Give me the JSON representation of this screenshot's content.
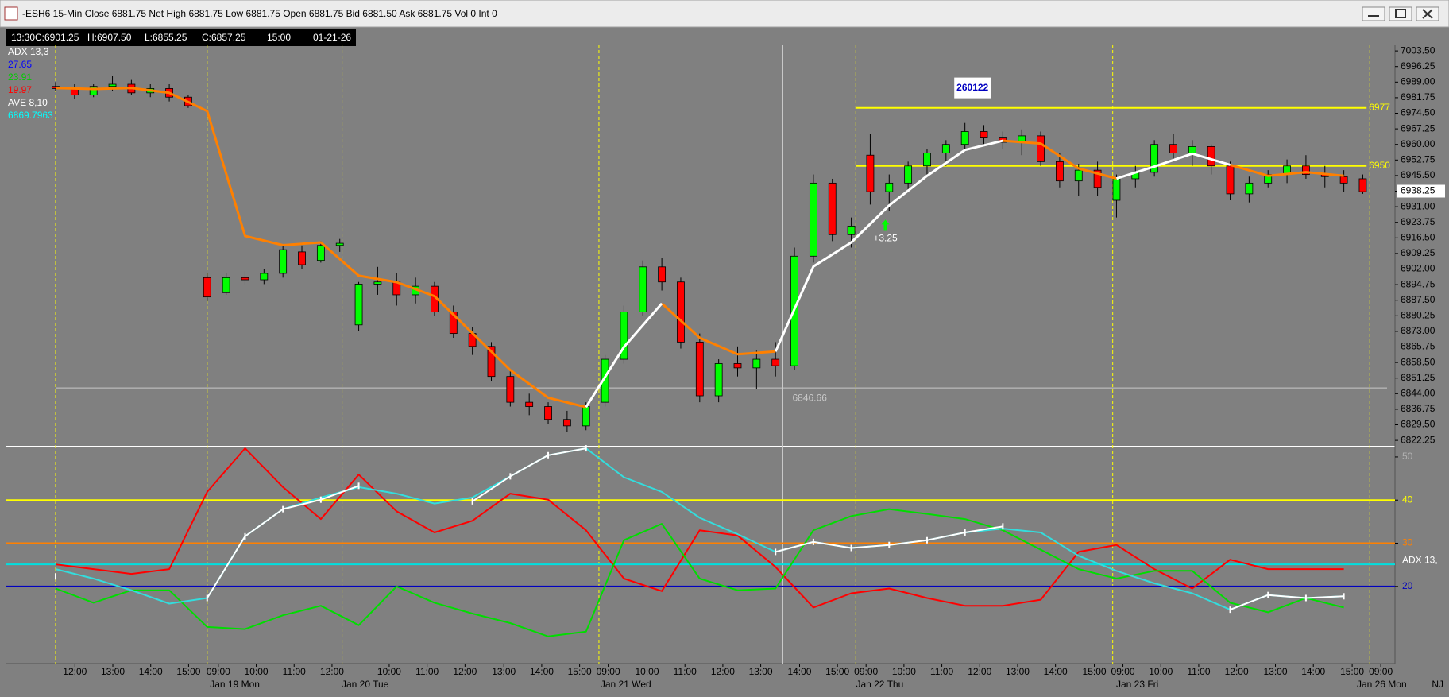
{
  "window_title": "-ESH6 15-Min Close 6881.75 Net  High 6881.75 Low 6881.75 Open 6881.75 Bid 6881.50 Ask 6881.75 Vol 0 Int 0",
  "info_box": [
    "13:30",
    "C:6901.25",
    "H:6907.50",
    "L:6855.25",
    "C:6857.25",
    "15:00",
    "01-21-26"
  ],
  "corner_label": "NJ",
  "chart_data": [
    {
      "type": "candlestick",
      "xlim": [
        -2.6,
        70.7
      ],
      "ylim": [
        6819.7,
        7006.5
      ],
      "yticks": [
        {
          "value": 7003.5,
          "label": "7003.50"
        },
        6996.25,
        {
          "value": 6989,
          "label": "6989.00"
        },
        6981.75,
        {
          "value": 6974.5,
          "label": "6974.50"
        },
        6967.25,
        {
          "value": 6960,
          "label": "6960.00"
        },
        6952.75,
        {
          "value": 6945.5,
          "label": "6945.50"
        },
        6938.25,
        {
          "value": 6931,
          "label": "6931.00"
        },
        6923.75,
        {
          "value": 6916.5,
          "label": "6916.50"
        },
        6909.25,
        {
          "value": 6902,
          "label": "6902.00"
        },
        6894.75,
        {
          "value": 6887.5,
          "label": "6887.50"
        },
        6880.25,
        {
          "value": 6873,
          "label": "6873.00"
        },
        6865.75,
        {
          "value": 6858.5,
          "label": "6858.50"
        },
        6851.25,
        {
          "value": 6844,
          "label": "6844.00"
        },
        6836.75,
        {
          "value": 6829.5,
          "label": "6829.50"
        },
        6822.25
      ],
      "highlight_ytick": 6938.25,
      "up_color": "#00ff00",
      "down_color": "#ff0000",
      "x": [
        0,
        1,
        2,
        3,
        4,
        5,
        6,
        7,
        8,
        9,
        10,
        11,
        12,
        13,
        14,
        15,
        16,
        17,
        18,
        19,
        20,
        21,
        22,
        23,
        24,
        25,
        26,
        27,
        28,
        29,
        30,
        31,
        32,
        33,
        34,
        35,
        36,
        37,
        38,
        39,
        40,
        41,
        42,
        43,
        44,
        45,
        46,
        47,
        48,
        49,
        50,
        51,
        52,
        53,
        54,
        55,
        56,
        57,
        58,
        59,
        60,
        61,
        62,
        63,
        64,
        65,
        66,
        67,
        68,
        69
      ],
      "open": [
        6987,
        6986,
        6983,
        6987,
        6988,
        6984,
        6986,
        6982,
        6898,
        6891,
        6898,
        6897,
        6900,
        6910,
        6906,
        6913,
        6876,
        6895,
        6896,
        6890,
        6894,
        6882,
        6872,
        6866,
        6852,
        6840,
        6838,
        6832,
        6829,
        6840,
        6860,
        6882,
        6903,
        6896,
        6868,
        6843,
        6858,
        6856,
        6860,
        6857,
        6908,
        6942,
        6918,
        6955,
        6938,
        6942,
        6950,
        6956,
        6960,
        6966,
        6963,
        6961,
        6964,
        6952,
        6943,
        6948,
        6934,
        6944,
        6947,
        6960,
        6956,
        6959,
        6950,
        6937,
        6942,
        6946,
        6950,
        6946,
        6945,
        6944
      ],
      "high": [
        6989,
        6988,
        6988,
        6992,
        6990,
        6988,
        6988,
        6983,
        6900,
        6900,
        6901,
        6902,
        6913,
        6913,
        6915,
        6916,
        6896,
        6903,
        6900,
        6898,
        6896,
        6885,
        6875,
        6868,
        6855,
        6844,
        6840,
        6836,
        6840,
        6862,
        6885,
        6906,
        6907,
        6898,
        6872,
        6860,
        6866,
        6864,
        6868,
        6912,
        6946,
        6944,
        6926,
        6965,
        6946,
        6952,
        6958,
        6962,
        6970,
        6969,
        6966,
        6967,
        6966,
        6956,
        6951,
        6952,
        6946,
        6950,
        6962,
        6965,
        6962,
        6960,
        6952,
        6945,
        6948,
        6953,
        6955,
        6950,
        6948,
        6946
      ],
      "low": [
        6985,
        6981,
        6982,
        6985,
        6983,
        6982,
        6980,
        6977,
        6887,
        6890,
        6895,
        6895,
        6898,
        6902,
        6905,
        6910,
        6873,
        6890,
        6885,
        6886,
        6880,
        6870,
        6862,
        6850,
        6838,
        6834,
        6830,
        6826,
        6827,
        6838,
        6858,
        6880,
        6892,
        6865,
        6840,
        6840,
        6852,
        6846,
        6852,
        6855,
        6905,
        6915,
        6912,
        6932,
        6929,
        6938,
        6946,
        6950,
        6958,
        6960,
        6958,
        6955,
        6950,
        6940,
        6936,
        6936,
        6926,
        6940,
        6945,
        6953,
        6950,
        6946,
        6934,
        6933,
        6940,
        6942,
        6944,
        6940,
        6938,
        6937
      ],
      "close": [
        6986,
        6983,
        6987,
        6988,
        6984,
        6986,
        6982,
        6978,
        6889,
        6898,
        6897,
        6900,
        6911,
        6904,
        6913,
        6914,
        6895,
        6896,
        6890,
        6894,
        6882,
        6872,
        6866,
        6852,
        6840,
        6838,
        6832,
        6829,
        6838,
        6860,
        6882,
        6903,
        6896,
        6868,
        6843,
        6858,
        6856,
        6860,
        6857,
        6908,
        6942,
        6918,
        6922,
        6938,
        6942,
        6950,
        6956,
        6960,
        6966,
        6963,
        6961,
        6964,
        6952,
        6943,
        6948,
        6940,
        6944,
        6947,
        6960,
        6956,
        6959,
        6950,
        6937,
        6942,
        6946,
        6950,
        6946,
        6945,
        6942,
        6938
      ],
      "ma_x": [
        0,
        2,
        4,
        6,
        8,
        10,
        12,
        14,
        16,
        18,
        20,
        22,
        24,
        26,
        28,
        30,
        32,
        34,
        36,
        38,
        40,
        42,
        44,
        46,
        48,
        50,
        52,
        54,
        56,
        58,
        60,
        62,
        64,
        66,
        68
      ],
      "ma_lines": [
        {
          "color": "#ff8000",
          "values": [
            6986.27,
            6985.8,
            6986.27,
            6984.0,
            6975.5,
            6917.4,
            6913.1,
            6914.4,
            6898.9,
            6895.9,
            6889.4,
            6872.2,
            6855.0,
            6842.1,
            6837.7,
            null,
            6886.0,
            6870.0,
            6862.3,
            6863.6,
            null,
            null,
            null,
            null,
            null,
            6961.7,
            6960.4,
            6948.8,
            6944.1,
            null,
            null,
            6950.5,
            6945.4,
            6947.1,
            6945.4
          ]
        },
        {
          "color": "#ffffff",
          "values": [
            null,
            null,
            null,
            null,
            null,
            null,
            null,
            null,
            null,
            null,
            null,
            null,
            null,
            null,
            6837.7,
            6865.7,
            6886.0,
            null,
            null,
            6863.6,
            6903.2,
            6914.4,
            6931.6,
            6945.4,
            6957.4,
            6961.7,
            null,
            null,
            6944.1,
            6949.7,
            6955.7,
            6950.5,
            null,
            null,
            null
          ]
        }
      ],
      "session_lines": [
        0,
        8,
        15.12,
        28.68,
        42.24,
        55.8,
        69.37
      ],
      "crosshair": {
        "x": 38.39,
        "y": 6846.66
      },
      "levels": [
        {
          "value": 6977,
          "x": [
            42.24,
            69.2
          ],
          "color": "#ffff00"
        },
        {
          "value": 6950,
          "x": [
            42.24,
            69.2
          ],
          "color": "#ffff00"
        }
      ],
      "annotations": [
        {
          "text": "260122",
          "x": 48.4,
          "y": 6986.3
        },
        {
          "text": "+3.25",
          "x": 43.8,
          "y": 6916.1
        }
      ],
      "legend": [
        {
          "text": "ADX  13,3",
          "color": "#ffffff"
        },
        {
          "text": "27.65",
          "color": "#0000ff"
        },
        {
          "text": "23.91",
          "color": "#00cc00"
        },
        {
          "text": "19.97",
          "color": "#ff0000"
        },
        {
          "text": "AVE  8,10",
          "color": "#ffffff"
        },
        {
          "text": "6869.7963",
          "color": "#00ffff"
        }
      ]
    },
    {
      "type": "line",
      "xlim": [
        -2.6,
        70.7
      ],
      "ylim": [
        2.1,
        52.2
      ],
      "yticks": [
        20,
        30,
        40,
        50
      ],
      "ytick_colors": [
        "#0000c0",
        "#ff8000",
        "#ffff00",
        "#b0b0b0"
      ],
      "axis_label": "ADX  13,",
      "levels": [
        {
          "value": 40,
          "color": "#ffff00"
        },
        {
          "value": 30,
          "color": "#ff8000"
        },
        {
          "value": 25.1,
          "color": "#00e0e0"
        },
        {
          "value": 20,
          "color": "#0000c0"
        }
      ],
      "x": [
        0,
        2,
        4,
        6,
        8,
        10,
        12,
        14,
        16,
        18,
        20,
        22,
        24,
        26,
        28,
        30,
        32,
        34,
        36,
        38,
        40,
        42,
        44,
        46,
        48,
        50,
        52,
        54,
        56,
        58,
        60,
        62,
        64,
        66,
        68
      ],
      "series": [
        {
          "color": "#ff0000",
          "values": [
            25.1,
            24.0,
            22.9,
            24.0,
            41.9,
            52.0,
            43.0,
            35.6,
            45.9,
            37.4,
            32.5,
            35.2,
            41.5,
            40.1,
            33.0,
            21.8,
            18.9,
            33.0,
            31.8,
            24.5,
            15.1,
            18.4,
            19.5,
            17.3,
            15.5,
            15.5,
            16.9,
            28.0,
            29.6,
            24.0,
            19.5,
            26.2,
            24.0,
            24.0,
            24.0
          ]
        },
        {
          "color": "#00dd00",
          "values": [
            19.5,
            16.2,
            19.1,
            19.1,
            10.6,
            10.1,
            13.3,
            15.5,
            11.0,
            20.0,
            16.2,
            13.7,
            11.5,
            8.4,
            9.5,
            30.7,
            34.5,
            21.8,
            19.1,
            19.5,
            33.0,
            36.3,
            37.9,
            36.8,
            35.6,
            33.0,
            28.5,
            24.0,
            21.8,
            23.6,
            23.6,
            16.2,
            14.0,
            17.3,
            15.1
          ]
        },
        {
          "color": "#33dddd",
          "values": [
            24.0,
            21.8,
            19.1,
            16.0,
            17.3,
            31.6,
            37.9,
            40.6,
            43.0,
            41.5,
            39.2,
            40.6,
            45.5,
            50.4,
            52.0,
            45.3,
            41.9,
            35.9,
            32.1,
            28.0,
            30.3,
            28.9,
            29.6,
            30.7,
            32.5,
            33.4,
            32.5,
            27.1,
            23.6,
            20.7,
            18.4,
            14.6,
            18.0,
            17.3,
            17.7
          ]
        },
        {
          "color": "#ffffff",
          "ticks": true,
          "values": [
            22.3,
            null,
            null,
            null,
            17.3,
            31.6,
            37.9,
            40.1,
            43.3,
            null,
            null,
            39.7,
            45.5,
            50.4,
            52.0,
            null,
            null,
            null,
            null,
            28.0,
            30.3,
            28.9,
            29.6,
            30.7,
            32.5,
            33.9,
            null,
            null,
            null,
            null,
            null,
            14.6,
            18.0,
            17.3,
            17.7
          ]
        }
      ],
      "xticks": [
        {
          "value": 1.02,
          "label": "12:00"
        },
        {
          "value": 3.02,
          "label": "13:00"
        },
        {
          "value": 5.02,
          "label": "14:00"
        },
        {
          "value": 7.02,
          "label": "15:00"
        },
        {
          "value": 8.59,
          "label": "09:00"
        },
        {
          "value": 10.59,
          "label": "10:00"
        },
        {
          "value": 12.59,
          "label": "11:00"
        },
        {
          "value": 14.59,
          "label": "12:00"
        },
        {
          "value": 17.61,
          "label": "10:00"
        },
        {
          "value": 19.61,
          "label": "11:00"
        },
        {
          "value": 21.61,
          "label": "12:00"
        },
        {
          "value": 23.66,
          "label": "13:00"
        },
        {
          "value": 25.66,
          "label": "14:00"
        },
        {
          "value": 27.66,
          "label": "15:00"
        },
        {
          "value": 29.17,
          "label": "09:00"
        },
        {
          "value": 31.22,
          "label": "10:00"
        },
        {
          "value": 33.22,
          "label": "11:00"
        },
        {
          "value": 35.22,
          "label": "12:00"
        },
        {
          "value": 37.22,
          "label": "13:00"
        },
        {
          "value": 39.27,
          "label": "14:00"
        },
        {
          "value": 41.27,
          "label": "15:00"
        },
        {
          "value": 42.78,
          "label": "09:00"
        },
        {
          "value": 44.78,
          "label": "10:00"
        },
        {
          "value": 46.78,
          "label": "11:00"
        },
        {
          "value": 48.78,
          "label": "12:00"
        },
        {
          "value": 50.78,
          "label": "13:00"
        },
        {
          "value": 52.78,
          "label": "14:00"
        },
        {
          "value": 54.83,
          "label": "15:00"
        },
        {
          "value": 56.34,
          "label": "09:00"
        },
        {
          "value": 58.34,
          "label": "10:00"
        },
        {
          "value": 60.34,
          "label": "11:00"
        },
        {
          "value": 62.34,
          "label": "12:00"
        },
        {
          "value": 64.39,
          "label": "13:00"
        },
        {
          "value": 66.39,
          "label": "14:00"
        },
        {
          "value": 68.44,
          "label": "15:00"
        },
        {
          "value": 69.95,
          "label": "09:00"
        }
      ],
      "date_labels": [
        {
          "value": 9.46,
          "label": "Jan 19 Mon"
        },
        {
          "value": 16.34,
          "label": "Jan 20 Tue"
        },
        {
          "value": 30.1,
          "label": "Jan 21 Wed"
        },
        {
          "value": 43.5,
          "label": "Jan 22 Thu"
        },
        {
          "value": 57.1,
          "label": "Jan 23 Fri"
        },
        {
          "value": 70.0,
          "label": "Jan 26 Mon"
        }
      ]
    }
  ]
}
